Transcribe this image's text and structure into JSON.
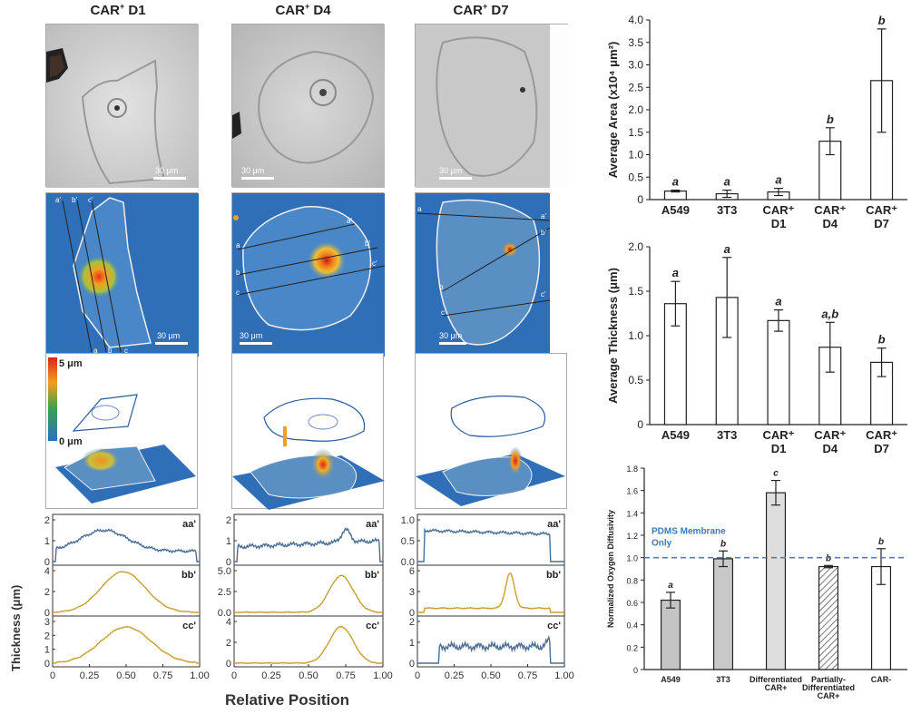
{
  "columns": [
    {
      "title_pre": "CAR",
      "title_sup": "+",
      "title_post": " D1"
    },
    {
      "title_pre": "CAR",
      "title_sup": "+",
      "title_post": " D4"
    },
    {
      "title_pre": "CAR",
      "title_sup": "+",
      "title_post": " D7"
    }
  ],
  "scale_label": "30 μm",
  "line_labels_col1": [
    "a'",
    "b'",
    "c'",
    "a",
    "b",
    "c"
  ],
  "line_labels_col2": [
    "a",
    "a'",
    "b",
    "b'",
    "c",
    "c'"
  ],
  "line_labels_col3": [
    "a",
    "a'",
    "b'",
    "b",
    "c'",
    "c"
  ],
  "colorbar": {
    "max": "5 μm",
    "min": "0 μm"
  },
  "profiles": {
    "ylabel": "Thickness (μm)",
    "xlabel": "Relative Position",
    "x_ticks": [
      "0",
      "0.25",
      "0.50",
      "0.75",
      "1.00"
    ],
    "row_labels": [
      "aa'",
      "bb'",
      "cc'"
    ],
    "col1": {
      "y_ticks": [
        [
          "0",
          "1",
          "2"
        ],
        [
          "0",
          "2",
          "4"
        ],
        [
          "0",
          "1",
          "2",
          "3"
        ]
      ]
    },
    "col2": {
      "y_ticks": [
        [
          "0",
          "1",
          "2"
        ],
        [
          "0.0",
          "2.5",
          "5.0"
        ],
        [
          "0",
          "2",
          "4"
        ]
      ]
    },
    "col3": {
      "y_ticks": [
        [
          "0.0",
          "0.5",
          "1.0"
        ],
        [
          "0",
          "3",
          "6"
        ],
        [
          "0",
          "1",
          "2"
        ]
      ]
    }
  },
  "chart_data": [
    {
      "type": "bar",
      "ylabel": "Average Area (x10⁴ μm²)",
      "categories": [
        "A549",
        "3T3",
        "CAR⁺ D1",
        "CAR⁺ D4",
        "CAR⁺ D7"
      ],
      "cat_line1": [
        "A549",
        "3T3",
        "CAR⁺",
        "CAR⁺",
        "CAR⁺"
      ],
      "cat_line2": [
        "",
        "",
        "D1",
        "D4",
        "D7"
      ],
      "values": [
        0.19,
        0.13,
        0.17,
        1.3,
        2.65
      ],
      "errors": [
        0.02,
        0.08,
        0.08,
        0.3,
        1.15
      ],
      "letters": [
        "a",
        "a",
        "a",
        "b",
        "b"
      ],
      "ylim": [
        0,
        4.0
      ],
      "yticks": [
        "0",
        "0.5",
        "1.0",
        "1.5",
        "2.0",
        "2.5",
        "3.0",
        "3.5",
        "4.0"
      ]
    },
    {
      "type": "bar",
      "ylabel": "Average Thickness (μm)",
      "categories": [
        "A549",
        "3T3",
        "CAR⁺ D1",
        "CAR⁺ D4",
        "CAR⁺ D7"
      ],
      "cat_line1": [
        "A549",
        "3T3",
        "CAR⁺",
        "CAR⁺",
        "CAR⁺"
      ],
      "cat_line2": [
        "",
        "",
        "D1",
        "D4",
        "D7"
      ],
      "values": [
        1.36,
        1.43,
        1.17,
        0.87,
        0.7
      ],
      "errors": [
        0.25,
        0.45,
        0.12,
        0.28,
        0.16
      ],
      "letters": [
        "a",
        "a",
        "a",
        "a,b",
        "b"
      ],
      "ylim": [
        0,
        2.0
      ],
      "yticks": [
        "0",
        "0.5",
        "1.0",
        "1.5",
        "2.0"
      ]
    },
    {
      "type": "bar",
      "ylabel": "Normalized Oxygen Diffusivity",
      "categories": [
        "A549",
        "3T3",
        "Differentiated CAR+",
        "Partially-Differentiated CAR+",
        "CAR-"
      ],
      "values": [
        0.62,
        0.99,
        1.58,
        0.92,
        0.92
      ],
      "errors": [
        0.07,
        0.07,
        0.11,
        0.01,
        0.16
      ],
      "letters": [
        "a",
        "b",
        "c",
        "b",
        "b"
      ],
      "ylim": [
        0,
        1.8
      ],
      "yticks": [
        "0",
        "0.2",
        "0.4",
        "0.6",
        "0.8",
        "1.0",
        "1.2",
        "1.4",
        "1.6",
        "1.8"
      ],
      "reference": {
        "value": 1.0,
        "label_line1": "PDMS Membrane",
        "label_line2": "Only"
      }
    }
  ]
}
